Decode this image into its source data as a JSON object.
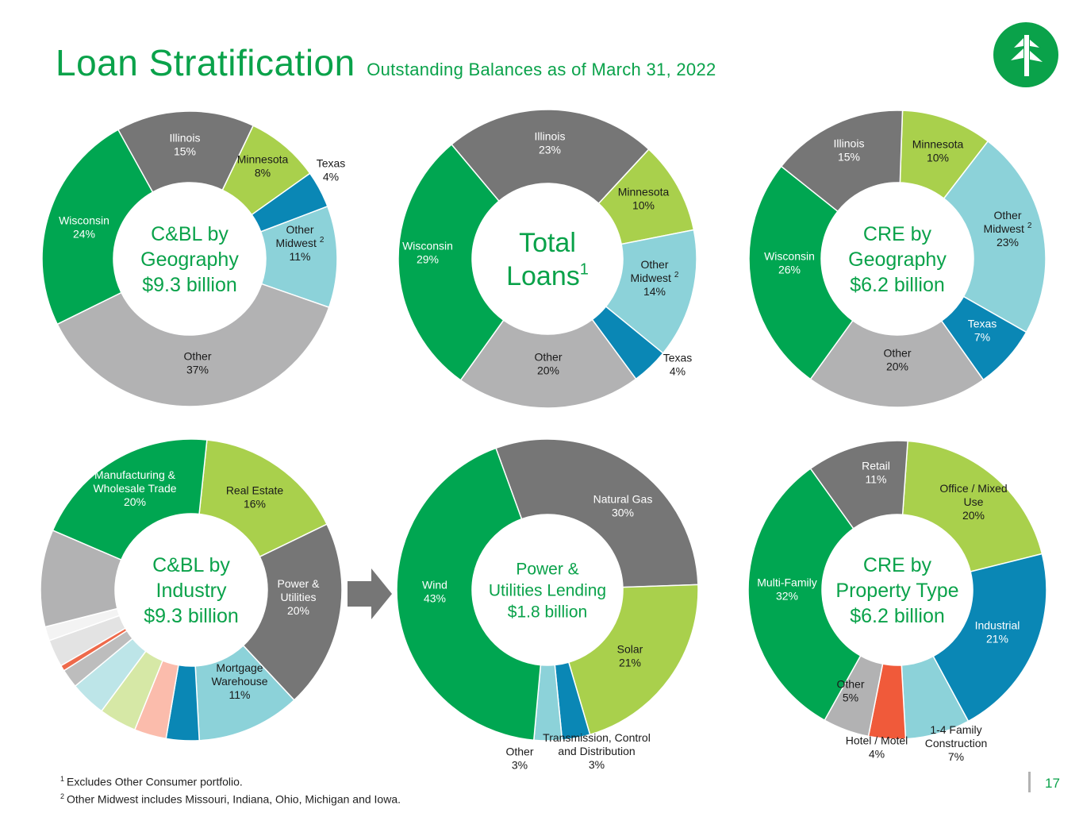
{
  "header": {
    "title": "Loan Stratification",
    "subtitle": "Outstanding Balances as of March 31, 2022"
  },
  "logo": {
    "icon": "tree-logo-icon",
    "color": "#0aa24a"
  },
  "colors": {
    "green": "#00a651",
    "dark_gray": "#767676",
    "light_green": "#a9d04c",
    "blue": "#0a87b5",
    "light_blue": "#8cd2d9",
    "gray": "#b2b2b3",
    "title_green": "#0aa24a"
  },
  "chart_data": [
    {
      "type": "pie",
      "center_label": [
        "C&BL by",
        "Geography",
        "$9.3 billion"
      ],
      "categories": [
        "Illinois",
        "Minnesota",
        "Texas",
        "Other Midwest",
        "Other",
        "Wisconsin"
      ],
      "values": [
        15,
        8,
        4,
        11,
        37,
        24
      ],
      "labels": [
        {
          "lines": [
            "Illinois",
            "15%"
          ]
        },
        {
          "lines": [
            "Minnesota",
            "8%"
          ]
        },
        {
          "lines": [
            "Texas",
            "4%"
          ]
        },
        {
          "lines": [
            "Other",
            "Midwest",
            "11%"
          ],
          "sup": "2"
        },
        {
          "lines": [
            "Other",
            "37%"
          ]
        },
        {
          "lines": [
            "Wisconsin",
            "24%"
          ]
        }
      ]
    },
    {
      "type": "pie",
      "center_label": [
        "Total",
        "Loans"
      ],
      "center_sup": "1",
      "categories": [
        "Illinois",
        "Minnesota",
        "Other Midwest",
        "Texas",
        "Other",
        "Wisconsin"
      ],
      "values": [
        23,
        10,
        14,
        4,
        20,
        29
      ],
      "labels": [
        {
          "lines": [
            "Illinois",
            "23%"
          ]
        },
        {
          "lines": [
            "Minnesota",
            "10%"
          ]
        },
        {
          "lines": [
            "Other",
            "Midwest",
            "14%"
          ],
          "sup": "2"
        },
        {
          "lines": [
            "Texas",
            "4%"
          ]
        },
        {
          "lines": [
            "Other",
            "20%"
          ]
        },
        {
          "lines": [
            "Wisconsin",
            "29%"
          ]
        }
      ]
    },
    {
      "type": "pie",
      "center_label": [
        "CRE by",
        "Geography",
        "$6.2 billion"
      ],
      "categories": [
        "Minnesota",
        "Other Midwest",
        "Texas",
        "Other",
        "Wisconsin",
        "Illinois"
      ],
      "values": [
        10,
        23,
        7,
        20,
        26,
        15
      ],
      "labels": [
        {
          "lines": [
            "Minnesota",
            "10%"
          ]
        },
        {
          "lines": [
            "Other",
            "Midwest",
            "23%"
          ],
          "sup": "2"
        },
        {
          "lines": [
            "Texas",
            "7%"
          ]
        },
        {
          "lines": [
            "Other",
            "20%"
          ]
        },
        {
          "lines": [
            "Wisconsin",
            "26%"
          ]
        },
        {
          "lines": [
            "Illinois",
            "15%"
          ]
        }
      ]
    },
    {
      "type": "pie",
      "center_label": [
        "C&BL by",
        "Industry",
        "$9.3 billion"
      ],
      "categories": [
        "Real Estate",
        "Power & Utilities",
        "Mortgage Warehouse",
        "",
        "",
        "",
        "",
        "",
        "",
        "",
        "",
        "",
        "Manufacturing & Wholesale Trade"
      ],
      "values": [
        16,
        20,
        11,
        3.5,
        3.4,
        4,
        3.8,
        2,
        0.6,
        2.9,
        1.5,
        10.3,
        20
      ],
      "labels": [
        {
          "lines": [
            "Real Estate",
            "16%"
          ]
        },
        {
          "lines": [
            "Power &",
            "Utilities",
            "20%"
          ]
        },
        {
          "lines": [
            "Mortgage",
            "Warehouse",
            "11%"
          ]
        },
        null,
        null,
        null,
        null,
        null,
        null,
        null,
        null,
        null,
        {
          "lines": [
            "Manufacturing &",
            "Wholesale Trade",
            "20%"
          ]
        }
      ]
    },
    {
      "type": "pie",
      "center_label": [
        "Power &",
        "Utilities Lending",
        "$1.8 billion"
      ],
      "categories": [
        "Natural Gas",
        "Solar",
        "Transmission, Control and Distribution",
        "Other",
        "Wind"
      ],
      "values": [
        30,
        21,
        3,
        3,
        43
      ],
      "labels": [
        {
          "lines": [
            "Natural Gas",
            "30%"
          ]
        },
        {
          "lines": [
            "Solar",
            "21%"
          ]
        },
        {
          "lines": [
            "Transmission, Control",
            "and Distribution",
            "3%"
          ]
        },
        {
          "lines": [
            "Other",
            "3%"
          ]
        },
        {
          "lines": [
            "Wind",
            "43%"
          ]
        }
      ]
    },
    {
      "type": "pie",
      "center_label": [
        "CRE by",
        "Property Type",
        "$6.2 billion"
      ],
      "categories": [
        "Office / Mixed Use",
        "Industrial",
        "1-4 Family Construction",
        "Hotel / Motel",
        "Other",
        "Multi-Family",
        "Retail"
      ],
      "values": [
        20,
        21,
        7,
        4,
        5,
        32,
        11
      ],
      "labels": [
        {
          "lines": [
            "Office / Mixed",
            "Use",
            "20%"
          ]
        },
        {
          "lines": [
            "Industrial",
            "21%"
          ]
        },
        {
          "lines": [
            "1-4 Family",
            "Construction",
            "7%"
          ]
        },
        {
          "lines": [
            "Hotel / Motel",
            "4%"
          ]
        },
        {
          "lines": [
            "Other",
            "5%"
          ]
        },
        {
          "lines": [
            "Multi-Family",
            "32%"
          ]
        },
        {
          "lines": [
            "Retail",
            "11%"
          ]
        }
      ]
    }
  ],
  "footnotes": [
    {
      "mark": "1",
      "text": "Excludes Other Consumer portfolio."
    },
    {
      "mark": "2",
      "text": "Other Midwest includes Missouri, Indiana, Ohio, Michigan and Iowa."
    }
  ],
  "page_number": "17"
}
